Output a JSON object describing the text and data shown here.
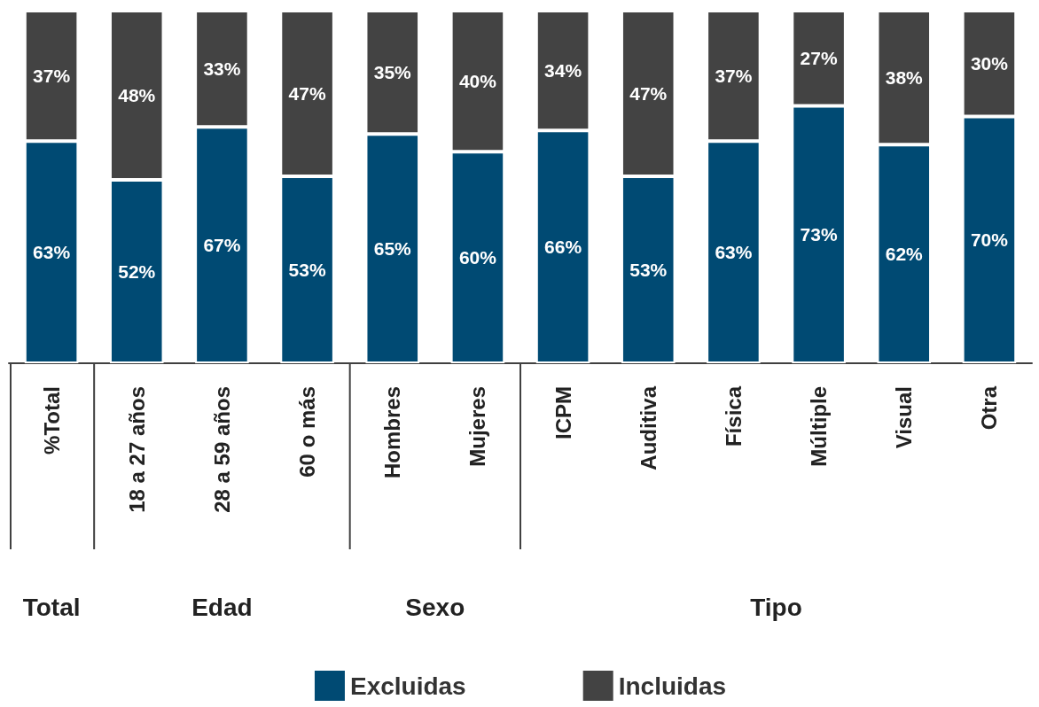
{
  "chart_data": {
    "type": "bar",
    "stacked": true,
    "ylim": [
      0,
      100
    ],
    "tick_labels": "x",
    "legend": "bottom",
    "categories": [
      "%Total",
      "18 a 27 años",
      "28 a 59 años",
      "60 o más",
      "Hombres",
      "Mujeres",
      "ICPM",
      "Auditiva",
      "Física",
      "Múltiple",
      "Visual",
      "Otra"
    ],
    "series": [
      {
        "name": "Excluidas",
        "color": "#004a73",
        "values": [
          63,
          52,
          67,
          53,
          65,
          60,
          66,
          53,
          63,
          73,
          62,
          70
        ],
        "value_labels": [
          "63%",
          "52%",
          "67%",
          "53%",
          "65%",
          "60%",
          "66%",
          "53%",
          "63%",
          "73%",
          "62%",
          "70%"
        ]
      },
      {
        "name": "Incluidas",
        "color": "#434343",
        "values": [
          37,
          48,
          33,
          47,
          35,
          40,
          34,
          47,
          37,
          27,
          38,
          30
        ],
        "value_labels": [
          "37%",
          "48%",
          "33%",
          "47%",
          "35%",
          "40%",
          "34%",
          "47%",
          "37%",
          "27%",
          "38%",
          "30%"
        ]
      }
    ],
    "annotations": [
      "Total",
      "Edad",
      "Sexo",
      "Tipo"
    ]
  }
}
